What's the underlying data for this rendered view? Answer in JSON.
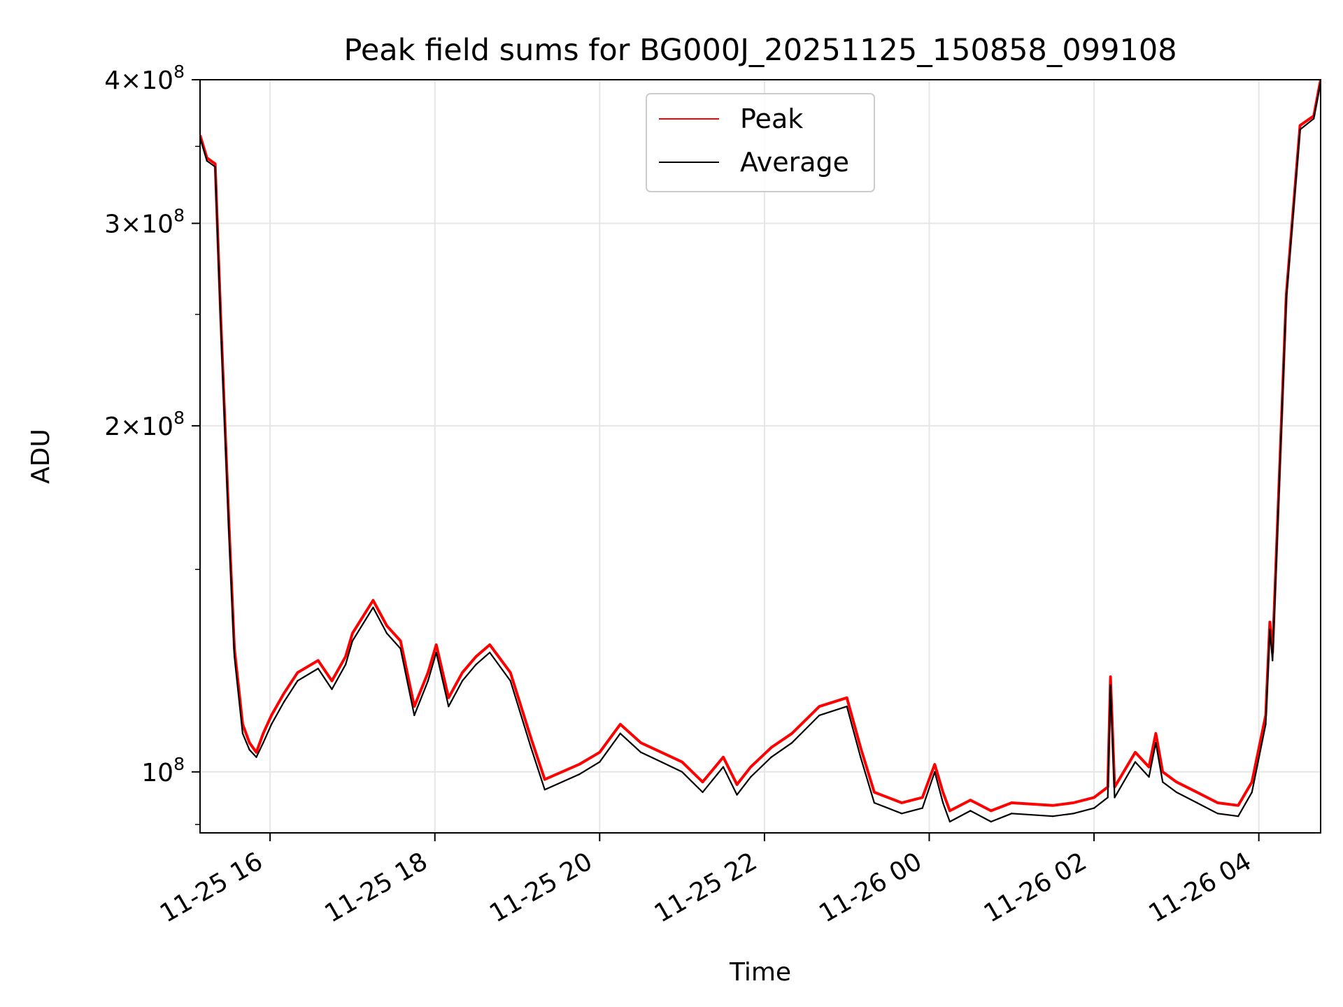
{
  "chart_data": {
    "type": "line",
    "title": "Peak field sums for BG000J_20251125_150858_099108",
    "xlabel": "Time",
    "ylabel": "ADU",
    "y_scale": "log",
    "ylim": [
      88500000,
      400000000
    ],
    "xlim": [
      "2025-11-25 15:09",
      "2025-11-26 04:45"
    ],
    "x_ticks": [
      {
        "value": "2025-11-25 16:00",
        "label": "11-25 16"
      },
      {
        "value": "2025-11-25 18:00",
        "label": "11-25 18"
      },
      {
        "value": "2025-11-25 20:00",
        "label": "11-25 20"
      },
      {
        "value": "2025-11-25 22:00",
        "label": "11-25 22"
      },
      {
        "value": "2025-11-26 00:00",
        "label": "11-26 00"
      },
      {
        "value": "2025-11-26 02:00",
        "label": "11-26 02"
      },
      {
        "value": "2025-11-26 04:00",
        "label": "11-26 04"
      }
    ],
    "y_ticks": [
      {
        "value": 100000000,
        "mantissa": "",
        "exp": "8"
      },
      {
        "value": 200000000,
        "mantissa": "2",
        "exp": "8"
      },
      {
        "value": 300000000,
        "mantissa": "3",
        "exp": "8"
      },
      {
        "value": 400000000,
        "mantissa": "4",
        "exp": "8"
      }
    ],
    "grid": true,
    "legend_position": "upper center",
    "x": [
      "2025-11-25 15:09",
      "2025-11-25 15:14",
      "2025-11-25 15:20",
      "2025-11-25 15:24",
      "2025-11-25 15:30",
      "2025-11-25 15:34",
      "2025-11-25 15:40",
      "2025-11-25 15:45",
      "2025-11-25 15:50",
      "2025-11-25 15:55",
      "2025-11-25 16:01",
      "2025-11-25 16:10",
      "2025-11-25 16:20",
      "2025-11-25 16:35",
      "2025-11-25 16:45",
      "2025-11-25 16:55",
      "2025-11-25 17:00",
      "2025-11-25 17:15",
      "2025-11-25 17:25",
      "2025-11-25 17:35",
      "2025-11-25 17:45",
      "2025-11-25 17:55",
      "2025-11-25 18:01",
      "2025-11-25 18:10",
      "2025-11-25 18:20",
      "2025-11-25 18:30",
      "2025-11-25 18:40",
      "2025-11-25 18:55",
      "2025-11-25 19:10",
      "2025-11-25 19:20",
      "2025-11-25 19:45",
      "2025-11-25 20:00",
      "2025-11-25 20:15",
      "2025-11-25 20:30",
      "2025-11-25 20:45",
      "2025-11-25 21:00",
      "2025-11-25 21:15",
      "2025-11-25 21:30",
      "2025-11-25 21:40",
      "2025-11-25 21:50",
      "2025-11-25 22:05",
      "2025-11-25 22:20",
      "2025-11-25 22:40",
      "2025-11-25 23:00",
      "2025-11-25 23:10",
      "2025-11-25 23:20",
      "2025-11-25 23:40",
      "2025-11-25 23:55",
      "2025-11-26 00:04",
      "2025-11-26 00:10",
      "2025-11-26 00:15",
      "2025-11-26 00:30",
      "2025-11-26 00:45",
      "2025-11-26 01:00",
      "2025-11-26 01:30",
      "2025-11-26 01:45",
      "2025-11-26 02:00",
      "2025-11-26 02:10",
      "2025-11-26 02:12",
      "2025-11-26 02:15",
      "2025-11-26 02:30",
      "2025-11-26 02:40",
      "2025-11-26 02:45",
      "2025-11-26 02:50",
      "2025-11-26 03:00",
      "2025-11-26 03:15",
      "2025-11-26 03:30",
      "2025-11-26 03:45",
      "2025-11-26 03:55",
      "2025-11-26 04:05",
      "2025-11-26 04:08",
      "2025-11-26 04:10",
      "2025-11-26 04:20",
      "2025-11-26 04:30",
      "2025-11-26 04:40",
      "2025-11-26 04:45"
    ],
    "series": [
      {
        "name": "Peak",
        "color": "#ff0000",
        "values": [
          358000000,
          342000000,
          338000000,
          250000000,
          165000000,
          128000000,
          110000000,
          106000000,
          104000000,
          108000000,
          112000000,
          117000000,
          122000000,
          125000000,
          120000000,
          126000000,
          132000000,
          141000000,
          134000000,
          130000000,
          114000000,
          122000000,
          129000000,
          116000000,
          122000000,
          126000000,
          129000000,
          122000000,
          107000000,
          98500000,
          101500000,
          104000000,
          110000000,
          106000000,
          104000000,
          102000000,
          98000000,
          103000000,
          97500000,
          101000000,
          105000000,
          108000000,
          114000000,
          116000000,
          105000000,
          96000000,
          94000000,
          95000000,
          101500000,
          96000000,
          92500000,
          94500000,
          92500000,
          94000000,
          93500000,
          94000000,
          95000000,
          97000000,
          121000000,
          97000000,
          104000000,
          101000000,
          108000000,
          100000000,
          98000000,
          96000000,
          94000000,
          93500000,
          98000000,
          112000000,
          135000000,
          127000000,
          260000000,
          365000000,
          372000000,
          400000000
        ]
      },
      {
        "name": "Average",
        "color": "#000000",
        "values": [
          356000000,
          340000000,
          336000000,
          247000000,
          162000000,
          126000000,
          108000000,
          104500000,
          103000000,
          106000000,
          110000000,
          115000000,
          120000000,
          123000000,
          118000000,
          124000000,
          130000000,
          139000000,
          132000000,
          128000000,
          112000000,
          120000000,
          127000000,
          114000000,
          120000000,
          124000000,
          127000000,
          120000000,
          105000000,
          96500000,
          99500000,
          102000000,
          108000000,
          104000000,
          102000000,
          100000000,
          96000000,
          101000000,
          95500000,
          99000000,
          103000000,
          106000000,
          112000000,
          114000000,
          103000000,
          94000000,
          92000000,
          93000000,
          100000000,
          94000000,
          90500000,
          92500000,
          90500000,
          92000000,
          91500000,
          92000000,
          93000000,
          95000000,
          119000000,
          95000000,
          102000000,
          99000000,
          106000000,
          98000000,
          96000000,
          94000000,
          92000000,
          91500000,
          96000000,
          110000000,
          133000000,
          125000000,
          258000000,
          362000000,
          370000000,
          398000000
        ]
      }
    ]
  }
}
